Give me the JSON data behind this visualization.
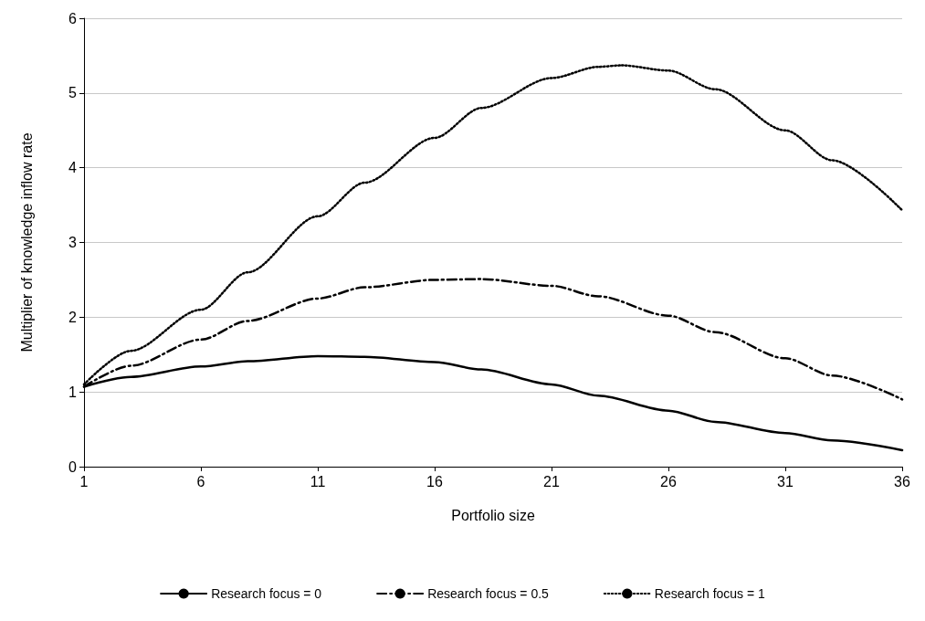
{
  "chart_data": {
    "type": "line",
    "xlabel": "Portfolio size",
    "ylabel": "Multiplier of knowledge inflow rate",
    "xlim": [
      1,
      36
    ],
    "xticks": [
      1,
      6,
      11,
      16,
      21,
      26,
      31,
      36
    ],
    "ylim": [
      0,
      6
    ],
    "yticks": [
      0,
      1,
      2,
      3,
      4,
      5,
      6
    ],
    "grid": "y",
    "legend": "bottom",
    "marker": "none",
    "series": [
      {
        "name": "Research focus = 0",
        "color": "#000000",
        "line_style": "solid",
        "x": [
          1,
          3,
          6,
          8,
          11,
          13,
          16,
          18,
          21,
          23,
          26,
          28,
          31,
          33,
          36
        ],
        "values": [
          1.07,
          1.2,
          1.34,
          1.41,
          1.48,
          1.47,
          1.4,
          1.3,
          1.1,
          0.95,
          0.75,
          0.6,
          0.45,
          0.35,
          0.22
        ]
      },
      {
        "name": "Research focus = 0.5",
        "color": "#000000",
        "line_style": "dashdot",
        "x": [
          1,
          3,
          6,
          8,
          11,
          13,
          16,
          18,
          21,
          23,
          26,
          28,
          31,
          33,
          36
        ],
        "values": [
          1.07,
          1.35,
          1.7,
          1.95,
          2.25,
          2.4,
          2.5,
          2.51,
          2.42,
          2.28,
          2.02,
          1.8,
          1.45,
          1.22,
          0.9
        ]
      },
      {
        "name": "Research focus = 1",
        "color": "#000000",
        "line_style": "dotted",
        "x": [
          1,
          3,
          6,
          8,
          11,
          13,
          16,
          18,
          21,
          23,
          24,
          26,
          28,
          31,
          33,
          36
        ],
        "values": [
          1.1,
          1.55,
          2.1,
          2.6,
          3.35,
          3.8,
          4.4,
          4.8,
          5.2,
          5.35,
          5.37,
          5.3,
          5.05,
          4.5,
          4.1,
          3.43
        ]
      }
    ]
  }
}
